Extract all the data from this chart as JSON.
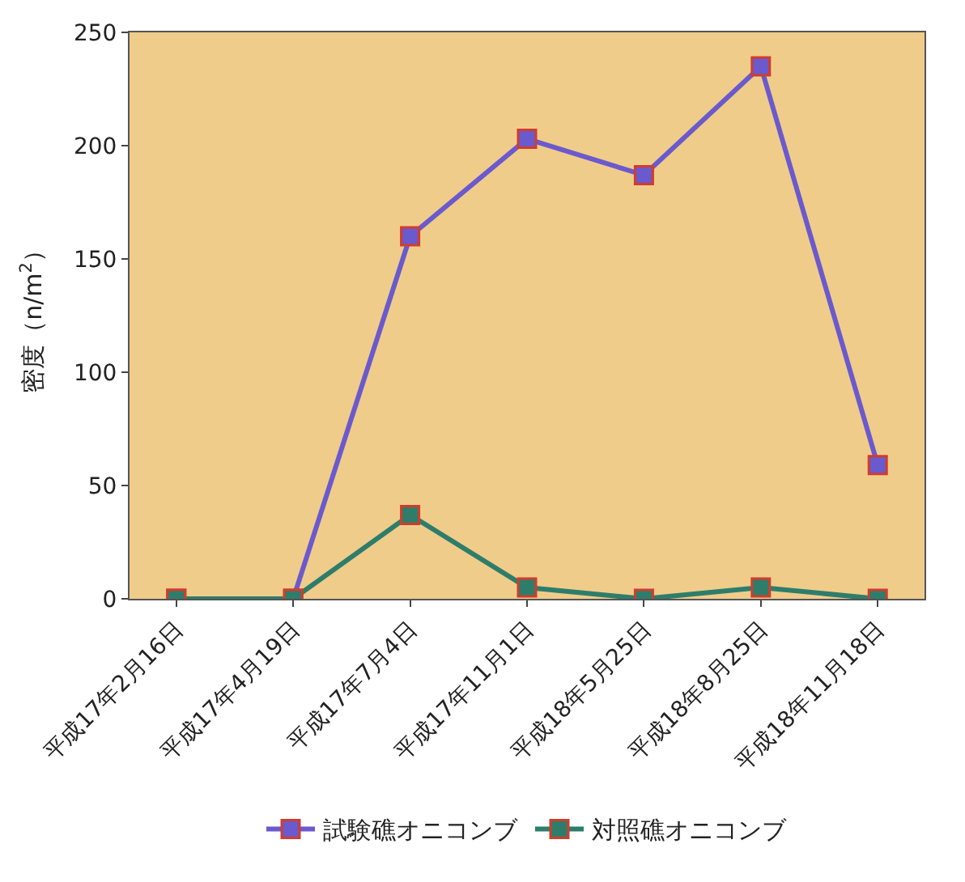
{
  "chart_data": {
    "type": "line",
    "ylabel": "密度（n/m$^{2}$）",
    "categories": [
      "平成17年2月16日",
      "平成17年4月19日",
      "平成17年7月4日",
      "平成17年11月1日",
      "平成18年5月25日",
      "平成18年8月25日",
      "平成18年11月18日"
    ],
    "series": [
      {
        "name": "試験礁オニコンブ",
        "color": "#6a5acd",
        "values": [
          0,
          0,
          160,
          203,
          187,
          235,
          59
        ]
      },
      {
        "name": "対照礁オニコンブ",
        "color": "#2e7d6b",
        "values": [
          0,
          0,
          37,
          5,
          0,
          5,
          0
        ]
      }
    ],
    "ylim": [
      0,
      250
    ],
    "yticks": [
      0,
      50,
      100,
      150,
      200,
      250
    ],
    "grid": false,
    "legend": "bottom",
    "marker": "square",
    "line_style": "solid"
  }
}
